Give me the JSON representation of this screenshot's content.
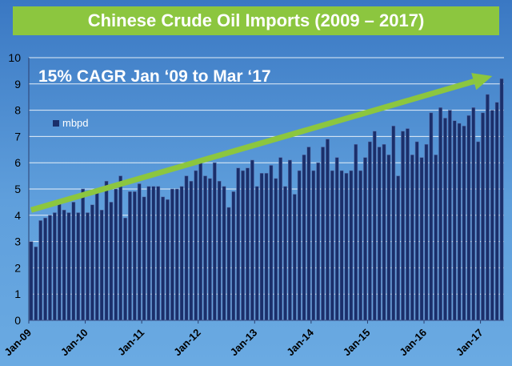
{
  "title": "Chinese Crude Oil Imports (2009 – 2017)",
  "colors": {
    "title_bar": "#8cc63f",
    "bar": "#1a2f6b",
    "bar_edge": "#5a6fa8",
    "trend_arrow": "#8cc63f",
    "grid": "#ffffff"
  },
  "chart_data": {
    "type": "bar",
    "title": "Chinese Crude Oil Imports (2009 – 2017)",
    "annotation": "15% CAGR Jan ‘09 to Mar ‘17",
    "legend": [
      "mbpd"
    ],
    "legend_position": "upper-left",
    "ylim": [
      0,
      10
    ],
    "yticks": [
      "0",
      "1",
      "2",
      "3",
      "4",
      "5",
      "6",
      "7",
      "8",
      "9",
      "10"
    ],
    "xtick_labels": [
      "Jan-09",
      "Jan-10",
      "Jan-11",
      "Jan-12",
      "Jan-13",
      "Jan-14",
      "Jan-15",
      "Jan-16",
      "Jan-17"
    ],
    "xtick_month_index": [
      0,
      12,
      24,
      36,
      48,
      60,
      72,
      84,
      96
    ],
    "grid": true,
    "series": [
      {
        "name": "mbpd",
        "values": [
          3.0,
          2.8,
          3.8,
          3.9,
          4.0,
          4.1,
          4.6,
          4.2,
          4.1,
          4.5,
          4.1,
          5.0,
          4.1,
          4.4,
          4.9,
          4.2,
          5.3,
          4.5,
          5.0,
          5.5,
          3.9,
          4.9,
          4.9,
          5.2,
          4.7,
          5.1,
          5.1,
          5.1,
          4.7,
          4.6,
          5.0,
          5.0,
          5.1,
          5.5,
          5.3,
          5.7,
          6.1,
          5.5,
          5.4,
          6.0,
          5.3,
          5.1,
          4.3,
          4.9,
          5.8,
          5.7,
          5.8,
          6.1,
          5.1,
          5.6,
          5.6,
          5.9,
          5.4,
          6.2,
          5.1,
          6.1,
          4.8,
          5.7,
          6.3,
          6.6,
          5.7,
          6.0,
          6.6,
          6.9,
          5.7,
          6.2,
          5.7,
          5.6,
          5.7,
          6.7,
          5.7,
          6.2,
          6.8,
          7.2,
          6.6,
          6.7,
          6.3,
          7.4,
          5.5,
          7.2,
          7.3,
          6.3,
          6.8,
          6.2,
          6.7,
          7.9,
          6.3,
          8.1,
          7.7,
          8.0,
          7.6,
          7.5,
          7.4,
          7.8,
          8.1,
          6.8,
          7.9,
          8.6,
          8.0,
          8.3,
          9.2
        ]
      }
    ],
    "trend_line": {
      "from": {
        "month_index": 0,
        "value": 4.2
      },
      "to": {
        "month_index": 98.5,
        "value": 9.3
      }
    }
  }
}
